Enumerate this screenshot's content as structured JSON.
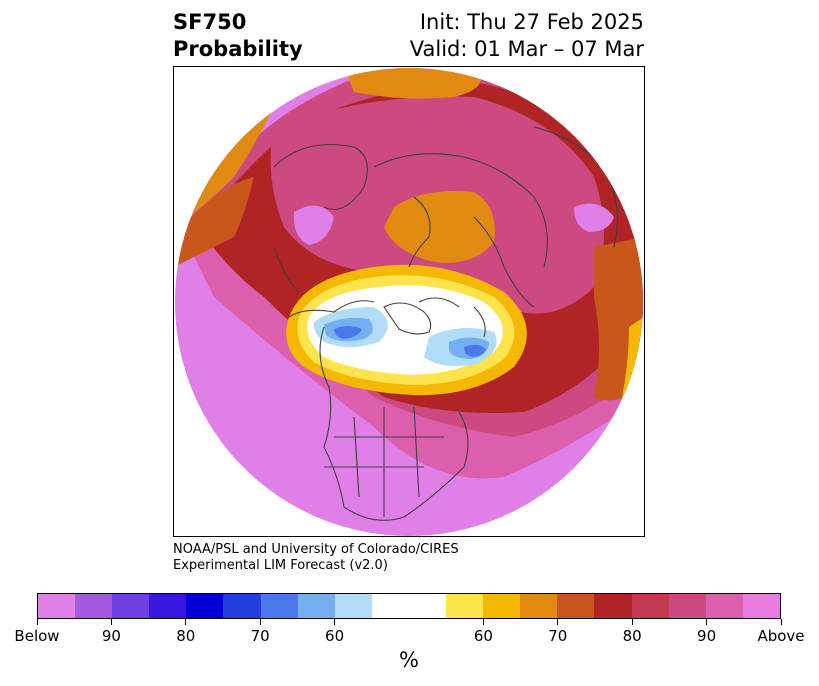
{
  "header": {
    "variable": "SF750",
    "variable_sub": "Probability",
    "init": "Init: Thu 27 Feb 2025",
    "valid": "Valid: 01 Mar – 07 Mar"
  },
  "credit": {
    "line1": "NOAA/PSL and University of Colorado/CIRES",
    "line2": "Experimental LIM Forecast (v2.0)"
  },
  "colorbar": {
    "colors": [
      "#e07fe8",
      "#a35ae0",
      "#6f3fe0",
      "#3818dc",
      "#0000d6",
      "#2340de",
      "#4c78ea",
      "#74aff2",
      "#b0dcf8",
      "#ffffff",
      "#fde44c",
      "#f5b800",
      "#e18a12",
      "#c9561a",
      "#b12425",
      "#c43a52",
      "#cc4a80",
      "#dc5eac",
      "#e87ae0"
    ],
    "tick_labels": [
      "Below",
      "90",
      "80",
      "70",
      "60",
      "60",
      "70",
      "80",
      "90",
      "Above"
    ],
    "units": "%"
  },
  "map": {
    "projection": "north-polar-stereographic",
    "field_colors": {
      "outer_ring": "#e07fe8",
      "ring_2": "#dc5eac",
      "ring_3": "#cc4a80",
      "ring_4": "#b12425",
      "ring_5": "#c9561a",
      "ring_6": "#e18a12",
      "ring_7": "#f5b800",
      "ring_8": "#fde44c",
      "center": "#ffffff",
      "below_60": "#b0dcf8",
      "below_70": "#74aff2",
      "below_80": "#4c78ea",
      "coastline": "#404040"
    }
  }
}
